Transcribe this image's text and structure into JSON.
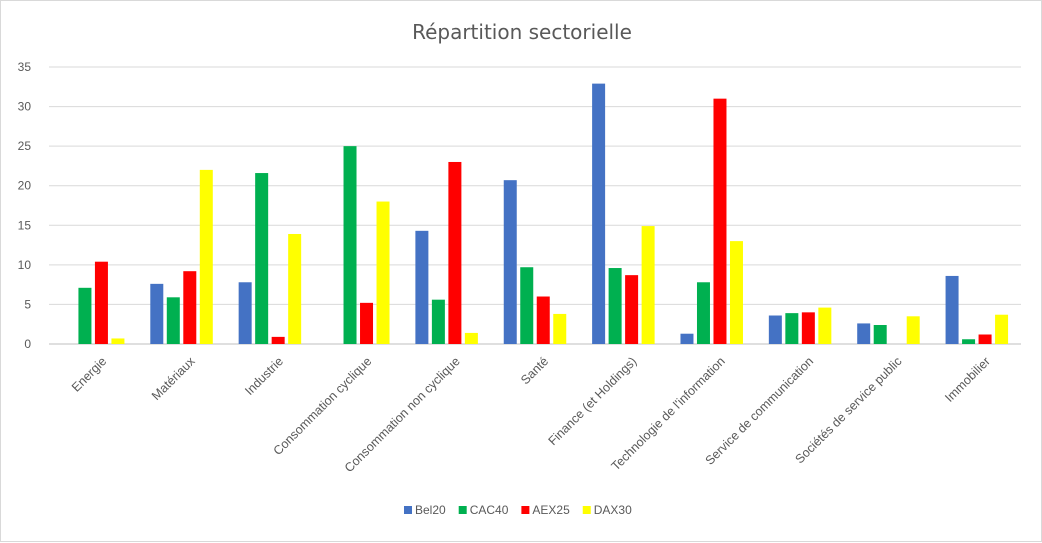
{
  "chart_data": {
    "type": "bar",
    "title": "Répartition sectorielle",
    "xlabel": "",
    "ylabel": "",
    "ylim": [
      0,
      35
    ],
    "yticks": [
      "0",
      "5",
      "10",
      "15",
      "20",
      "25",
      "30",
      "35"
    ],
    "grid": true,
    "legend_position": "bottom",
    "categories": [
      "Energie",
      "Matériaux",
      "Industrie",
      "Consommation cyclique",
      "Consommation non cyclique",
      "Santé",
      "Finance (et Holdings)",
      "Technologie de l'information",
      "Service de communication",
      "Sociétés de service public",
      "Immobilier"
    ],
    "series": [
      {
        "name": "Bel20",
        "color": "#4472c4",
        "values": [
          0,
          7.6,
          7.8,
          0,
          14.3,
          20.7,
          32.9,
          1.3,
          3.6,
          2.6,
          8.6
        ]
      },
      {
        "name": "CAC40",
        "color": "#00b050",
        "values": [
          7.1,
          5.9,
          21.6,
          25.0,
          5.6,
          9.7,
          9.6,
          7.8,
          3.9,
          2.4,
          0.6
        ]
      },
      {
        "name": "AEX25",
        "color": "#ff0000",
        "values": [
          10.4,
          9.2,
          0.9,
          5.2,
          23.0,
          6.0,
          8.7,
          31.0,
          4.0,
          0,
          1.2
        ]
      },
      {
        "name": "DAX30",
        "color": "#ffff00",
        "values": [
          0.7,
          22.0,
          13.9,
          18.0,
          1.4,
          3.8,
          14.9,
          13.0,
          4.6,
          3.5,
          3.7
        ]
      }
    ]
  }
}
